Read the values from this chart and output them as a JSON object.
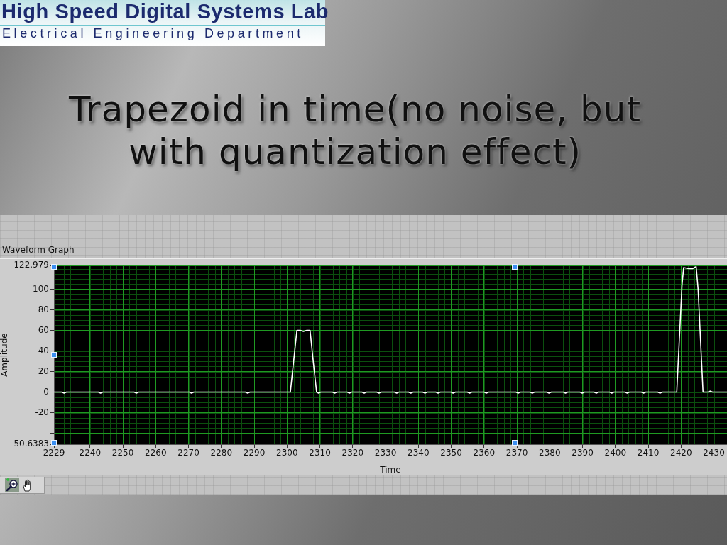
{
  "chart_data": {
    "type": "line",
    "title": "Trapezoid in time(no noise, but with quantization effect)",
    "annotations": [
      "High Speed Digital Systems Lab",
      "Electrical Engineering Department",
      "Waveform Graph"
    ],
    "xlabel": "Time",
    "ylabel": "Amplitude",
    "x": [
      2229,
      2231.4,
      2232.1,
      2232.8,
      2242.5,
      2243.2,
      2243.9,
      2253.4,
      2254.1,
      2254.8,
      2270.2,
      2270.9,
      2271.6,
      2287.3,
      2288,
      2288.7,
      2301,
      2302,
      2303,
      2304,
      2305,
      2306,
      2307,
      2308,
      2309,
      2309.6,
      2310.3,
      2313.8,
      2314.5,
      2315.2,
      2318.3,
      2319,
      2319.7,
      2322.8,
      2323.5,
      2324.2,
      2327.3,
      2328,
      2328.7,
      2332.7,
      2333.4,
      2334.1,
      2337,
      2337.7,
      2338.4,
      2341.3,
      2342,
      2342.7,
      2345.3,
      2346,
      2346.7,
      2349.9,
      2350.6,
      2351.3,
      2354.9,
      2355.6,
      2356.3,
      2360,
      2360.7,
      2361.4,
      2369.7,
      2370.4,
      2371.1,
      2374,
      2374.7,
      2375.4,
      2379.1,
      2379.8,
      2380.5,
      2384.1,
      2384.8,
      2385.5,
      2389.2,
      2389.9,
      2390.6,
      2393.5,
      2394.2,
      2394.9,
      2398.2,
      2398.9,
      2399.6,
      2402.9,
      2403.6,
      2404.3,
      2407.9,
      2408.6,
      2409.3,
      2412.9,
      2413.6,
      2414.3,
      2418.7,
      2420.3,
      2420.8,
      2422.3,
      2423.5,
      2424.6,
      2425.2,
      2426.7,
      2428.2,
      2428.9,
      2429.6,
      2434
    ],
    "values": [
      0,
      0,
      -1,
      0,
      0,
      -1,
      0,
      0,
      -1,
      0,
      0,
      -1,
      0,
      0,
      -1,
      0,
      0,
      30,
      60,
      60,
      59,
      60,
      60,
      29,
      0,
      -1,
      0,
      0,
      -1,
      0,
      0,
      -1,
      0,
      0,
      -1,
      0,
      0,
      -1,
      0,
      0,
      -1,
      0,
      0,
      -1,
      0,
      0,
      -1,
      0,
      0,
      -1,
      0,
      0,
      -1,
      0,
      0,
      -1,
      0,
      0,
      -1,
      0,
      0,
      -1,
      0,
      0,
      -1,
      0,
      0,
      -1,
      0,
      0,
      -1,
      0,
      0,
      -1,
      0,
      0,
      -1,
      0,
      0,
      -1,
      0,
      0,
      -1,
      0,
      0,
      -1,
      0,
      0,
      -1,
      0,
      0,
      104,
      121,
      120,
      120,
      122,
      100,
      0,
      0,
      1,
      0,
      0
    ],
    "color": "#ffffff",
    "marker": "none",
    "line_style": "solid",
    "xlim": [
      2229,
      2434
    ],
    "xticks": [
      2229,
      2240,
      2250,
      2260,
      2270,
      2280,
      2290,
      2300,
      2310,
      2320,
      2330,
      2340,
      2350,
      2360,
      2370,
      2380,
      2390,
      2400,
      2410,
      2420,
      2430
    ],
    "ylim": [
      -50.6383,
      122.979
    ],
    "yticks": [
      -50.6383,
      {
        "value": -40,
        "label": null
      },
      -20,
      0,
      20,
      40,
      60,
      80,
      100,
      122.979
    ],
    "grid": true
  }
}
